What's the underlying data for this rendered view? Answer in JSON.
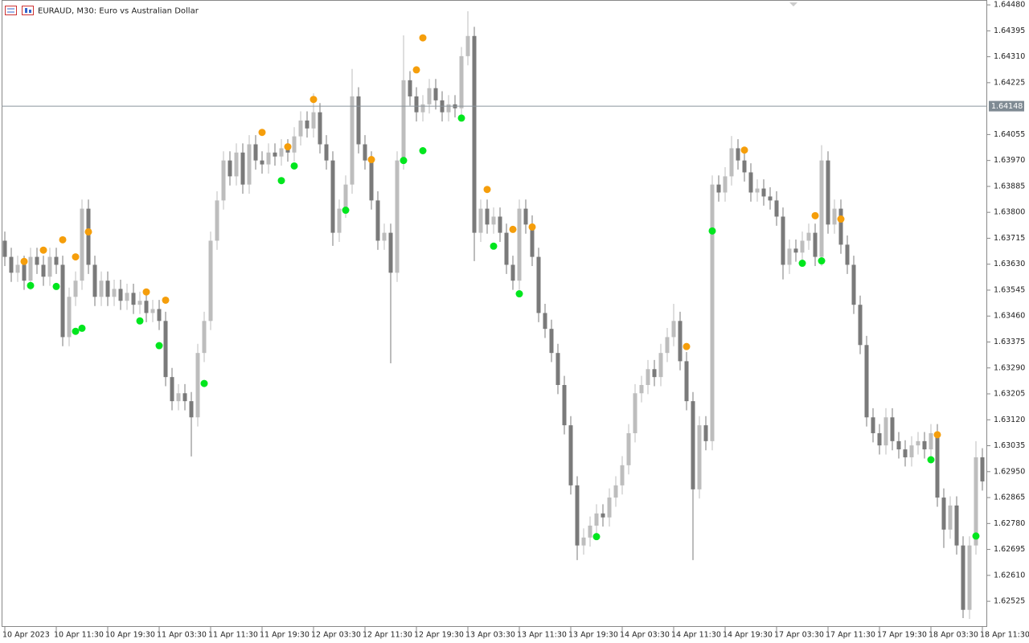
{
  "chart_data": {
    "type": "candlestick",
    "title": "EURAUD, M30:  Euro vs Australian Dollar",
    "categories": [
      "10 Apr 2023",
      null,
      null,
      null,
      null,
      null,
      null,
      null,
      "10 Apr 11:30",
      null,
      null,
      null,
      null,
      null,
      null,
      null,
      "10 Apr 19:30",
      null,
      null,
      null,
      null,
      null,
      null,
      null,
      "11 Apr 03:30",
      null,
      null,
      null,
      null,
      null,
      null,
      null,
      "11 Apr 11:30",
      null,
      null,
      null,
      null,
      null,
      null,
      null,
      "11 Apr 19:30",
      null,
      null,
      null,
      null,
      null,
      null,
      null,
      "12 Apr 03:30",
      null,
      null,
      null,
      null,
      null,
      null,
      null,
      "12 Apr 11:30",
      null,
      null,
      null,
      null,
      null,
      null,
      null,
      "12 Apr 19:30",
      null,
      null,
      null,
      null,
      null,
      null,
      null,
      "13 Apr 03:30",
      null,
      null,
      null,
      null,
      null,
      null,
      null,
      "13 Apr 11:30",
      null,
      null,
      null,
      null,
      null,
      null,
      null,
      "13 Apr 19:30",
      null,
      null,
      null,
      null,
      null,
      null,
      null,
      "14 Apr 03:30",
      null,
      null,
      null,
      null,
      null,
      null,
      null,
      "14 Apr 11:30",
      null,
      null,
      null,
      null,
      null,
      null,
      null,
      "14 Apr 19:30",
      null,
      null,
      null,
      null,
      null,
      null,
      null,
      "17 Apr 03:30",
      null,
      null,
      null,
      null,
      null,
      null,
      null,
      "17 Apr 11:30",
      null,
      null,
      null,
      null,
      null,
      null,
      null,
      "17 Apr 19:30",
      null,
      null,
      null,
      null,
      null,
      null,
      null,
      "18 Apr 03:30",
      null,
      null,
      null,
      null,
      null,
      null,
      null,
      "18 Apr 11:30"
    ],
    "open": [
      1.63707,
      1.63654,
      1.63602,
      1.63628,
      1.63576,
      1.63654,
      1.63628,
      1.63589,
      1.63654,
      1.63628,
      1.63391,
      1.63523,
      1.63576,
      1.63812,
      1.63628,
      1.63523,
      1.63576,
      1.63523,
      1.63549,
      1.6351,
      1.63536,
      1.63497,
      1.6351,
      1.6347,
      1.63483,
      1.63444,
      1.6326,
      1.63181,
      1.63207,
      1.63181,
      1.63128,
      1.63339,
      1.63444,
      1.63707,
      1.63839,
      1.6397,
      1.63918,
      1.63996,
      1.63891,
      1.64023,
      1.6397,
      1.63957,
      1.63996,
      1.63983,
      1.6401,
      1.63996,
      1.64049,
      1.64101,
      1.64075,
      1.64128,
      1.64023,
      1.6397,
      1.63733,
      1.63812,
      1.63891,
      1.6418,
      1.64023,
      1.6397,
      1.63839,
      1.63707,
      1.63733,
      1.63602,
      1.6397,
      1.64233,
      1.6418,
      1.64128,
      1.64154,
      1.64207,
      1.64167,
      1.64128,
      1.64154,
      1.64141,
      1.64312,
      1.64378,
      1.63733,
      1.63812,
      1.6376,
      1.63786,
      1.63733,
      1.63628,
      1.63576,
      1.63812,
      1.6376,
      1.63654,
      1.6347,
      1.63418,
      1.63339,
      1.63234,
      1.63102,
      1.62905,
      1.62708,
      1.62734,
      1.62773,
      1.62813,
      1.628,
      1.62865,
      1.62905,
      1.62971,
      1.63076,
      1.63207,
      1.63234,
      1.63286,
      1.6326,
      1.63339,
      1.63391,
      1.63444,
      1.63312,
      1.63181,
      1.62892,
      1.63102,
      1.6305,
      1.63891,
      1.63865,
      1.63918,
      1.6401,
      1.6397,
      1.63931,
      1.63865,
      1.63878,
      1.63852,
      1.63839,
      1.63786,
      1.63628,
      1.63681,
      1.63668,
      1.63707,
      1.63733,
      1.63654,
      1.6397,
      1.6376,
      1.63812,
      1.63694,
      1.63628,
      1.63497,
      1.63365,
      1.63128,
      1.63076,
      1.63036,
      1.63128,
      1.6305,
      1.63023,
      1.62997,
      1.63036,
      1.6305,
      1.63023,
      1.63076,
      1.62865,
      1.6276,
      1.62839,
      1.62708,
      1.62497,
      1.62708,
      1.62997
    ],
    "high": [
      1.63737,
      1.63684,
      1.63658,
      1.63658,
      1.63684,
      1.63684,
      1.63658,
      1.63684,
      1.63684,
      1.63658,
      1.63553,
      1.63606,
      1.63842,
      1.63842,
      1.63658,
      1.63606,
      1.63606,
      1.63579,
      1.63579,
      1.63566,
      1.63566,
      1.6354,
      1.6354,
      1.63513,
      1.63513,
      1.63474,
      1.6329,
      1.63237,
      1.63237,
      1.63211,
      1.63369,
      1.63474,
      1.63737,
      1.63869,
      1.64,
      1.64,
      1.64026,
      1.64026,
      1.64053,
      1.64053,
      1.64,
      1.64026,
      1.64026,
      1.6404,
      1.6404,
      1.64079,
      1.64131,
      1.64131,
      1.6419,
      1.64158,
      1.64053,
      1.64,
      1.63842,
      1.63921,
      1.6427,
      1.6421,
      1.64053,
      1.64,
      1.63869,
      1.63763,
      1.63763,
      1.64,
      1.6438,
      1.64263,
      1.6421,
      1.64184,
      1.64237,
      1.64237,
      1.64197,
      1.64184,
      1.64184,
      1.64342,
      1.64459,
      1.64408,
      1.63842,
      1.63842,
      1.63816,
      1.63816,
      1.63763,
      1.63658,
      1.63842,
      1.63842,
      1.6379,
      1.63684,
      1.635,
      1.63448,
      1.63369,
      1.63264,
      1.63132,
      1.62935,
      1.62764,
      1.62803,
      1.62843,
      1.62843,
      1.62895,
      1.62935,
      1.63001,
      1.63106,
      1.63237,
      1.63264,
      1.63316,
      1.63316,
      1.63369,
      1.63421,
      1.635,
      1.63474,
      1.63342,
      1.63211,
      1.63132,
      1.63132,
      1.63921,
      1.63921,
      1.63948,
      1.6405,
      1.6404,
      1.64,
      1.63961,
      1.63908,
      1.63908,
      1.63882,
      1.63869,
      1.63816,
      1.63711,
      1.63711,
      1.63737,
      1.63763,
      1.63763,
      1.6402,
      1.64,
      1.63842,
      1.63842,
      1.63724,
      1.63658,
      1.63527,
      1.63395,
      1.63158,
      1.63106,
      1.63158,
      1.63158,
      1.6308,
      1.63053,
      1.63066,
      1.6308,
      1.6308,
      1.63106,
      1.63106,
      1.62895,
      1.62869,
      1.62869,
      1.62738,
      1.62738,
      1.6305,
      1.63027
    ],
    "low": [
      1.63624,
      1.63572,
      1.63572,
      1.63546,
      1.63546,
      1.63598,
      1.63559,
      1.63559,
      1.63598,
      1.63361,
      1.63361,
      1.63493,
      1.63546,
      1.63598,
      1.63493,
      1.63493,
      1.63493,
      1.63493,
      1.6348,
      1.6348,
      1.63467,
      1.63467,
      1.6344,
      1.6344,
      1.63414,
      1.6323,
      1.63151,
      1.63151,
      1.63151,
      1.63,
      1.63098,
      1.63309,
      1.63414,
      1.63677,
      1.63809,
      1.63888,
      1.63888,
      1.63861,
      1.63861,
      1.6394,
      1.63927,
      1.63927,
      1.63953,
      1.63953,
      1.63966,
      1.63966,
      1.64019,
      1.64045,
      1.64045,
      1.63993,
      1.6394,
      1.6369,
      1.63703,
      1.63782,
      1.63861,
      1.63993,
      1.6394,
      1.63809,
      1.63677,
      1.63677,
      1.63305,
      1.63572,
      1.6394,
      1.6415,
      1.64098,
      1.64098,
      1.64124,
      1.64137,
      1.64098,
      1.64098,
      1.64111,
      1.64111,
      1.64282,
      1.6364,
      1.63703,
      1.6373,
      1.6373,
      1.63703,
      1.63598,
      1.63546,
      1.63546,
      1.6373,
      1.63624,
      1.6344,
      1.63388,
      1.63309,
      1.63204,
      1.63072,
      1.62875,
      1.6266,
      1.62678,
      1.62704,
      1.62743,
      1.6277,
      1.6277,
      1.62835,
      1.62875,
      1.62941,
      1.63046,
      1.63177,
      1.63204,
      1.6323,
      1.6323,
      1.63309,
      1.63361,
      1.63282,
      1.63151,
      1.6266,
      1.62862,
      1.6302,
      1.6302,
      1.63835,
      1.63835,
      1.63888,
      1.6394,
      1.63901,
      1.63835,
      1.63835,
      1.63822,
      1.63809,
      1.63756,
      1.6358,
      1.63598,
      1.63638,
      1.63638,
      1.63677,
      1.63624,
      1.63624,
      1.6373,
      1.6373,
      1.63664,
      1.63598,
      1.63467,
      1.63335,
      1.63098,
      1.63046,
      1.63006,
      1.63006,
      1.6302,
      1.62993,
      1.62967,
      1.62967,
      1.63006,
      1.62993,
      1.62993,
      1.62835,
      1.627,
      1.6273,
      1.62678,
      1.6247,
      1.62467,
      1.62678,
      1.62888
    ],
    "close": [
      1.63654,
      1.63602,
      1.63628,
      1.63576,
      1.63654,
      1.63628,
      1.63589,
      1.63654,
      1.63628,
      1.63391,
      1.63523,
      1.63576,
      1.63812,
      1.63628,
      1.63523,
      1.63576,
      1.63523,
      1.63549,
      1.6351,
      1.63536,
      1.63497,
      1.6351,
      1.6347,
      1.63483,
      1.63444,
      1.6326,
      1.63181,
      1.63207,
      1.63181,
      1.63128,
      1.63339,
      1.63444,
      1.63707,
      1.63839,
      1.6397,
      1.63918,
      1.63996,
      1.63891,
      1.64023,
      1.6397,
      1.63957,
      1.63996,
      1.63983,
      1.6401,
      1.63996,
      1.64049,
      1.64101,
      1.64075,
      1.64128,
      1.64023,
      1.6397,
      1.63733,
      1.63812,
      1.63891,
      1.6418,
      1.64023,
      1.6397,
      1.63839,
      1.63707,
      1.63733,
      1.63602,
      1.6397,
      1.64233,
      1.6418,
      1.64128,
      1.64154,
      1.64207,
      1.64167,
      1.64128,
      1.64154,
      1.64141,
      1.64312,
      1.64378,
      1.63733,
      1.63812,
      1.6376,
      1.63786,
      1.63733,
      1.63628,
      1.63576,
      1.63812,
      1.6376,
      1.63654,
      1.6347,
      1.63418,
      1.63339,
      1.63234,
      1.63102,
      1.62905,
      1.62708,
      1.62734,
      1.62773,
      1.62813,
      1.628,
      1.62865,
      1.62905,
      1.62971,
      1.63076,
      1.63207,
      1.63234,
      1.63286,
      1.6326,
      1.63339,
      1.63391,
      1.63444,
      1.63312,
      1.63181,
      1.62892,
      1.63102,
      1.6305,
      1.63891,
      1.63865,
      1.63918,
      1.6401,
      1.6397,
      1.63931,
      1.63865,
      1.63878,
      1.63852,
      1.63839,
      1.63786,
      1.63628,
      1.63681,
      1.63668,
      1.63707,
      1.63733,
      1.63654,
      1.6397,
      1.6376,
      1.63812,
      1.63694,
      1.63628,
      1.63497,
      1.63365,
      1.63128,
      1.63076,
      1.63036,
      1.63128,
      1.6305,
      1.63023,
      1.62997,
      1.63036,
      1.6305,
      1.63023,
      1.63076,
      1.62865,
      1.6276,
      1.62839,
      1.62708,
      1.62497,
      1.62708,
      1.62997,
      1.62918
    ],
    "up_color": "#bdbdbd",
    "down_color": "#7a7a7a",
    "series": [
      {
        "color": "#f59e0b",
        "values": [
          null,
          null,
          null,
          1.63639,
          null,
          null,
          1.63676,
          null,
          null,
          1.6371,
          null,
          1.63654,
          null,
          1.63736,
          null,
          null,
          null,
          null,
          null,
          null,
          null,
          null,
          1.63539,
          null,
          null,
          1.63512,
          null,
          null,
          null,
          null,
          null,
          null,
          null,
          null,
          null,
          null,
          null,
          null,
          null,
          null,
          1.64062,
          null,
          null,
          null,
          1.64015,
          null,
          null,
          null,
          1.6417,
          null,
          null,
          null,
          null,
          null,
          null,
          null,
          null,
          1.63973,
          null,
          null,
          null,
          null,
          null,
          null,
          1.64267,
          1.64372,
          null,
          null,
          null,
          null,
          null,
          null,
          null,
          null,
          null,
          1.63875,
          null,
          null,
          null,
          1.63744,
          null,
          null,
          1.63752,
          null,
          null,
          null,
          null,
          null,
          null,
          null,
          null,
          null,
          null,
          null,
          null,
          null,
          null,
          null,
          null,
          null,
          null,
          null,
          null,
          null,
          null,
          null,
          1.6336,
          null,
          null,
          null,
          null,
          null,
          null,
          null,
          null,
          1.64004,
          null,
          null,
          null,
          null,
          null,
          null,
          null,
          null,
          null,
          null,
          1.63789,
          null,
          null,
          null,
          1.63778,
          null,
          null,
          null,
          null,
          null,
          null,
          null,
          null,
          null,
          null,
          null,
          null,
          null,
          null,
          1.63071,
          null,
          null,
          null,
          null,
          null,
          null,
          null
        ]
      },
      {
        "color": "#00e61e",
        "values": [
          null,
          null,
          null,
          null,
          1.6356,
          null,
          null,
          null,
          1.63557,
          null,
          null,
          1.6341,
          1.6342,
          null,
          null,
          null,
          null,
          null,
          null,
          null,
          null,
          1.63444,
          null,
          null,
          1.63363,
          null,
          null,
          null,
          null,
          null,
          null,
          1.63239,
          null,
          null,
          null,
          null,
          null,
          null,
          null,
          null,
          null,
          null,
          null,
          1.63904,
          null,
          1.63952,
          null,
          null,
          null,
          null,
          null,
          null,
          null,
          1.63807,
          null,
          null,
          null,
          null,
          null,
          null,
          null,
          null,
          1.6397,
          null,
          null,
          1.64002,
          null,
          null,
          null,
          null,
          null,
          1.64109,
          null,
          null,
          null,
          null,
          1.63689,
          null,
          null,
          null,
          1.63533,
          null,
          null,
          null,
          null,
          null,
          null,
          null,
          null,
          null,
          null,
          null,
          1.62737,
          null,
          null,
          null,
          null,
          null,
          null,
          null,
          null,
          null,
          null,
          null,
          null,
          null,
          null,
          null,
          null,
          null,
          1.63739,
          null,
          null,
          null,
          null,
          null,
          null,
          null,
          null,
          null,
          null,
          null,
          null,
          null,
          1.63633,
          null,
          null,
          1.63641,
          null,
          null,
          null,
          null,
          null,
          null,
          null,
          null,
          null,
          null,
          null,
          null,
          null,
          null,
          null,
          null,
          1.62989,
          null,
          null,
          null,
          null,
          null,
          null,
          1.62739,
          null
        ]
      }
    ],
    "current_price": {
      "value": 1.64148,
      "label": "1.64148"
    },
    "ylim": [
      1.62441,
      1.64496
    ],
    "yticks": [
      {
        "value": 1.6448,
        "label": "1.64480"
      },
      {
        "value": 1.64395,
        "label": "1.64395"
      },
      {
        "value": 1.6431,
        "label": "1.64310"
      },
      {
        "value": 1.64225,
        "label": "1.64225"
      },
      {
        "value": 1.64055,
        "label": "1.64055"
      },
      {
        "value": 1.6397,
        "label": "1.63970"
      },
      {
        "value": 1.63885,
        "label": "1.63885"
      },
      {
        "value": 1.638,
        "label": "1.63800"
      },
      {
        "value": 1.63715,
        "label": "1.63715"
      },
      {
        "value": 1.6363,
        "label": "1.63630"
      },
      {
        "value": 1.63545,
        "label": "1.63545"
      },
      {
        "value": 1.6346,
        "label": "1.63460"
      },
      {
        "value": 1.63375,
        "label": "1.63375"
      },
      {
        "value": 1.6329,
        "label": "1.63290"
      },
      {
        "value": 1.63205,
        "label": "1.63205"
      },
      {
        "value": 1.6312,
        "label": "1.63120"
      },
      {
        "value": 1.63035,
        "label": "1.63035"
      },
      {
        "value": 1.6295,
        "label": "1.62950"
      },
      {
        "value": 1.62865,
        "label": "1.62865"
      },
      {
        "value": 1.6278,
        "label": "1.62780"
      },
      {
        "value": 1.62695,
        "label": "1.62695"
      },
      {
        "value": 1.6261,
        "label": "1.62610"
      },
      {
        "value": 1.62525,
        "label": "1.62525"
      }
    ]
  }
}
